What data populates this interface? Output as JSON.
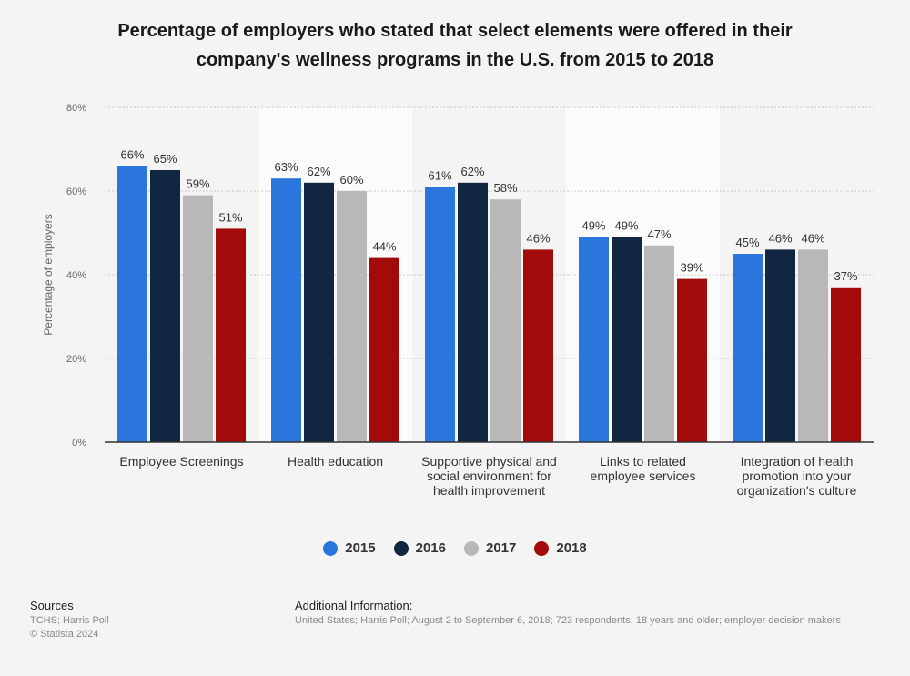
{
  "header": {
    "title_line1": "Percentage of employers who stated that select elements were offered in their",
    "title_line2": "company's wellness programs in the U.S. from 2015 to 2018"
  },
  "chart_data": {
    "type": "bar",
    "ylabel": "Percentage of employers",
    "ylim": [
      0,
      80
    ],
    "yticks": [
      {
        "value": 0,
        "label": "0%"
      },
      {
        "value": 20,
        "label": "20%"
      },
      {
        "value": 40,
        "label": "40%"
      },
      {
        "value": 60,
        "label": "60%"
      },
      {
        "value": 80,
        "label": "80%"
      }
    ],
    "grid": true,
    "legend_position": "bottom",
    "categories": [
      [
        "Employee Screenings"
      ],
      [
        "Health education"
      ],
      [
        "Supportive physical and",
        "social environment for",
        "health improvement"
      ],
      [
        "Links to related",
        "employee services"
      ],
      [
        "Integration of health",
        "promotion into your",
        "organization's culture"
      ]
    ],
    "series": [
      {
        "name": "2015",
        "color": "#2a76dd",
        "values": [
          66,
          63,
          61,
          49,
          45
        ],
        "labels": [
          "66%",
          "63%",
          "61%",
          "49%",
          "45%"
        ]
      },
      {
        "name": "2016",
        "color": "#112640",
        "values": [
          65,
          62,
          62,
          49,
          46
        ],
        "labels": [
          "65%",
          "62%",
          "62%",
          "49%",
          "46%"
        ]
      },
      {
        "name": "2017",
        "color": "#b8b8b8",
        "values": [
          59,
          60,
          58,
          47,
          46
        ],
        "labels": [
          "59%",
          "60%",
          "58%",
          "47%",
          "46%"
        ]
      },
      {
        "name": "2018",
        "color": "#a30b0b",
        "values": [
          51,
          44,
          46,
          39,
          37
        ],
        "labels": [
          "51%",
          "44%",
          "46%",
          "39%",
          "37%"
        ]
      }
    ]
  },
  "footer": {
    "sources_heading": "Sources",
    "sources_lines": [
      "TCHS; Harris Poll",
      "© Statista 2024"
    ],
    "additional_heading": "Additional Information:",
    "additional_text": "United States; Harris Poll; August 2 to September 6, 2018; 723 respondents; 18 years and older; employer decision makers"
  }
}
